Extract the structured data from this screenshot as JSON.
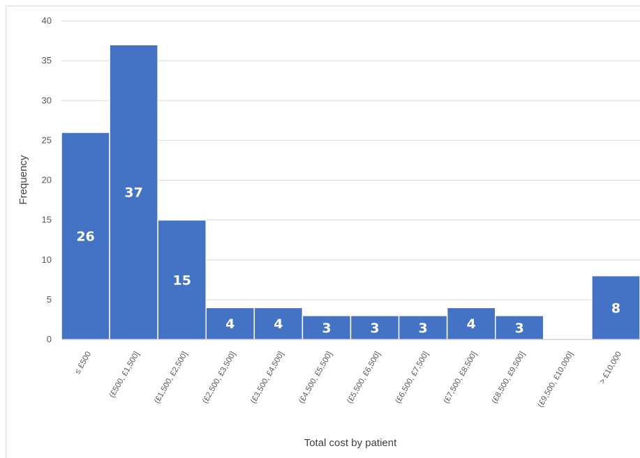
{
  "chart_data": {
    "type": "bar",
    "categories": [
      "≤ £500",
      "(£500, £1,500]",
      "(£1,500, £2,500]",
      "(£2,500, £3,500]",
      "(£3,500, £4,500]",
      "(£4,500, £5,500]",
      "(£5,500, £6,500]",
      "(£6,500, £7,500]",
      "(£7,500, £8,500]",
      "(£8,500, £9,500]",
      "(£9,500, £10,000]",
      "> £10,000"
    ],
    "values": [
      26,
      37,
      15,
      4,
      4,
      3,
      3,
      3,
      4,
      3,
      0,
      8
    ],
    "xlabel": "Total cost by patient",
    "ylabel": "Frequency",
    "ylim": [
      0,
      40
    ],
    "yticks": [
      0,
      5,
      10,
      15,
      20,
      25,
      30,
      35,
      40
    ],
    "grid": true,
    "bar_color": "#4472c4",
    "data_labels": true
  }
}
